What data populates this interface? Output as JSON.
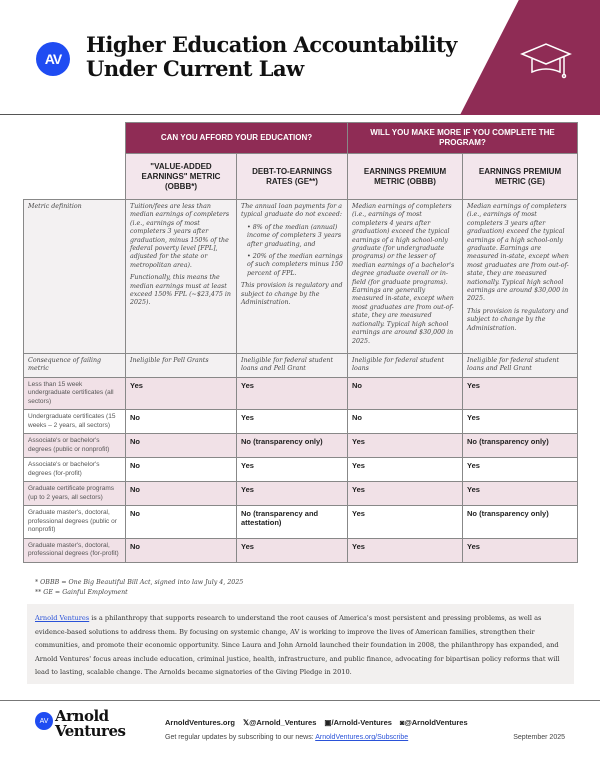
{
  "header": {
    "logo": "AV",
    "title_line1": "Higher Education Accountability",
    "title_line2": "Under Current Law",
    "icon": "graduation-cap-icon",
    "accent": "#8f2c55",
    "brand_blue": "#1f4cf2"
  },
  "table": {
    "groups": [
      "CAN YOU AFFORD YOUR EDUCATION?",
      "WILL YOU MAKE MORE IF YOU COMPLETE THE PROGRAM?"
    ],
    "columns": [
      "\"VALUE-ADDED EARNINGS\" METRIC (OBBB*)",
      "DEBT-TO-EARNINGS RATES (GE**)",
      "EARNINGS PREMIUM METRIC (OBBB)",
      "EARNINGS PREMIUM METRIC (GE)"
    ],
    "definition": {
      "label": "Metric definition",
      "c1_p1": "Tuition/fees are less than median earnings of completers (i.e., earnings of most completers 3 years after graduation, minus 150% of the federal poverty level [FPL], adjusted for the state or metropolitan area).",
      "c1_p2": "Functionally, this means the median earnings must at least exceed 150% FPL (~$23,475 in 2025).",
      "c2_p1": "The annual loan payments for a typical graduate do not exceed:",
      "c2_b1": "8% of the median (annual) income of completers 3 years after graduating, and",
      "c2_b2": "20% of the median earnings of such completers minus 150 percent of FPL.",
      "c2_p2": "This provision is regulatory and subject to change by the Administration.",
      "c3_p1": "Median earnings of completers (i.e., earnings of most completers 4 years after graduation) exceed the typical earnings of a high school-only graduate (for undergraduate programs) or the lesser of median earnings of a bachelor's degree graduate overall or in-field (for graduate programs). Earnings are generally measured in-state, except when most graduates are from out-of-state, they are measured nationally. Typical high school earnings are around $30,000 in 2025.",
      "c4_p1": "Median earnings of completers (i.e., earnings of most completers 3 years after graduation) exceed the typical earnings of a high school-only graduate. Earnings are measured in-state, except when most graduates are from out-of-state, they are measured nationally. Typical high school earnings are around $30,000 in 2025.",
      "c4_p2": "This provision is regulatory and subject to change by the Administration."
    },
    "consequence": {
      "label": "Consequence of failing metric",
      "values": [
        "Ineligible for Pell Grants",
        "Ineligible for federal student loans and Pell Grant",
        "Ineligible for federal student loans",
        "Ineligible for federal student loans and Pell Grant"
      ]
    },
    "rows": [
      {
        "label": "Less than 15 week undergraduate certificates (all sectors)",
        "values": [
          "Yes",
          "Yes",
          "No",
          "Yes"
        ]
      },
      {
        "label": "Undergraduate certificates (15 weeks – 2 years, all sectors)",
        "values": [
          "No",
          "Yes",
          "No",
          "Yes"
        ]
      },
      {
        "label": "Associate's or bachelor's degrees (public or nonprofit)",
        "values": [
          "No",
          "No (transparency only)",
          "Yes",
          "No (transparency only)"
        ]
      },
      {
        "label": "Associate's or bachelor's degrees (for-profit)",
        "values": [
          "No",
          "Yes",
          "Yes",
          "Yes"
        ]
      },
      {
        "label": "Graduate certificate programs (up to 2 years, all sectors)",
        "values": [
          "No",
          "Yes",
          "Yes",
          "Yes"
        ]
      },
      {
        "label": "Graduate master's, doctoral, professional degrees (public or nonprofit)",
        "values": [
          "No",
          "No (transparency and attestation)",
          "Yes",
          "No (transparency only)"
        ]
      },
      {
        "label": "Graduate master's, doctoral, professional degrees (for-profit)",
        "values": [
          "No",
          "Yes",
          "Yes",
          "Yes"
        ]
      }
    ]
  },
  "notes": [
    "* OBBB = One Big Beautiful Bill Act, signed into law July 4, 2025",
    "** GE = Gainful Employment"
  ],
  "about": {
    "link": "Arnold Ventures",
    "text": " is a philanthropy that supports research to understand the root causes of America's most persistent and pressing problems, as well as evidence-based solutions to address them. By focusing on systemic change, AV is working to improve the lives of American families, strengthen their communities, and promote their economic opportunity. Since Laura and John Arnold launched their foundation in 2008, the philanthropy has expanded, and Arnold Ventures' focus areas include education, criminal justice, health, infrastructure, and public finance, advocating for bipartisan policy reforms that will lead to lasting, scalable change. The Arnolds became signatories of the Giving Pledge in 2010."
  },
  "footer": {
    "logo_line1": "Arnold",
    "logo_line2": "Ventures",
    "website": "ArnoldVentures.org",
    "x": "@Arnold_Ventures",
    "linkedin": "/Arnold-Ventures",
    "instagram": "@ArnoldVentures",
    "subscribe_text": "Get regular updates by subscribing to our news: ",
    "subscribe_link": "ArnoldVentures.org/Subscribe",
    "date": "September 2025"
  }
}
